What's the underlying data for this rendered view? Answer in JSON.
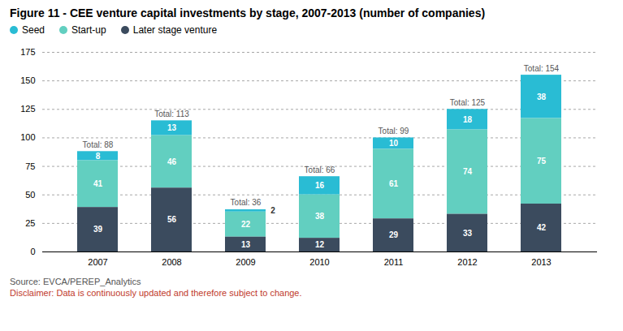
{
  "chart_data": {
    "type": "bar",
    "stacked": true,
    "title": "Figure 11 - CEE venture capital investments by stage, 2007-2013 (number of companies)",
    "categories": [
      "2007",
      "2008",
      "2009",
      "2010",
      "2011",
      "2012",
      "2013"
    ],
    "series": [
      {
        "name": "Seed",
        "color": "#29bcd4",
        "values": [
          8,
          13,
          2,
          16,
          10,
          18,
          38
        ]
      },
      {
        "name": "Start-up",
        "color": "#62cfc0",
        "values": [
          41,
          46,
          22,
          38,
          61,
          74,
          75
        ]
      },
      {
        "name": "Later stage venture",
        "color": "#3b4b5e",
        "values": [
          39,
          56,
          13,
          12,
          29,
          33,
          42
        ]
      }
    ],
    "annotations": [
      {
        "category": "2007",
        "text": "Total: 88"
      },
      {
        "category": "2008",
        "text": "Total: 113"
      },
      {
        "category": "2009",
        "text": "Total: 36"
      },
      {
        "category": "2010",
        "text": "Total: 66"
      },
      {
        "category": "2011",
        "text": "Total: 99"
      },
      {
        "category": "2012",
        "text": "Total: 125"
      },
      {
        "category": "2013",
        "text": "Total: 154"
      }
    ],
    "source": "Source: EVCA/PEREP_Analytics",
    "disclaimer": {
      "text": "Disclaimer: Data is continuously updated and therefore subject to change.",
      "color": "#c0392b"
    },
    "ylim": [
      0,
      175
    ],
    "yticks": [
      0,
      25,
      50,
      75,
      100,
      125,
      150,
      175
    ],
    "grid": true,
    "data_labels": true,
    "legend": "top"
  }
}
